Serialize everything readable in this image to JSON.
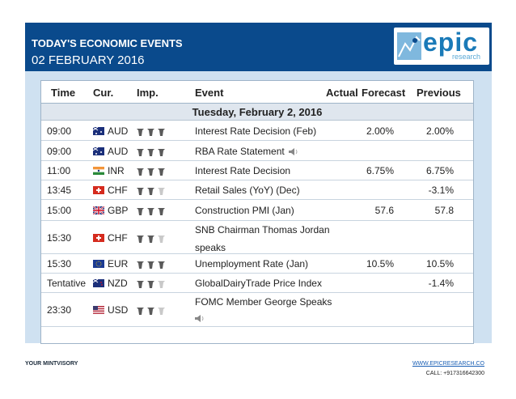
{
  "header": {
    "title": "TODAY'S ECONOMIC EVENTS",
    "date": "02 FEBRUARY 2016",
    "logo_text": "epic",
    "logo_sub": "research"
  },
  "table": {
    "columns": [
      "Time",
      "Cur.",
      "Imp.",
      "Event",
      "Actual",
      "Forecast",
      "Previous"
    ],
    "date_row": "Tuesday, February 2, 2016",
    "rows": [
      {
        "time": "09:00",
        "cur": "AUD",
        "flag": "au",
        "imp": 3,
        "event": "Interest Rate Decision (Feb)",
        "speaker": false,
        "actual": "",
        "forecast": "2.00%",
        "previous": "2.00%"
      },
      {
        "time": "09:00",
        "cur": "AUD",
        "flag": "au",
        "imp": 3,
        "event": "RBA Rate Statement",
        "speaker": true,
        "actual": "",
        "forecast": "",
        "previous": ""
      },
      {
        "time": "11:00",
        "cur": "INR",
        "flag": "in",
        "imp": 3,
        "event": "Interest Rate Decision",
        "speaker": false,
        "actual": "",
        "forecast": "6.75%",
        "previous": "6.75%"
      },
      {
        "time": "13:45",
        "cur": "CHF",
        "flag": "ch",
        "imp": 2,
        "event": "Retail Sales (YoY) (Dec)",
        "speaker": false,
        "actual": "",
        "forecast": "",
        "previous": "-3.1%"
      },
      {
        "time": "15:00",
        "cur": "GBP",
        "flag": "gb",
        "imp": 3,
        "event": "Construction PMI (Jan)",
        "speaker": false,
        "actual": "",
        "forecast": "57.6",
        "previous": "57.8"
      },
      {
        "time": "15:30",
        "cur": "CHF",
        "flag": "ch",
        "imp": 2,
        "event": "SNB Chairman Thomas Jordan",
        "event2": "speaks",
        "speaker": false,
        "actual": "",
        "forecast": "",
        "previous": ""
      },
      {
        "time": "15:30",
        "cur": "EUR",
        "flag": "eu",
        "imp": 3,
        "event": "Unemployment Rate (Jan)",
        "speaker": false,
        "actual": "",
        "forecast": "10.5%",
        "previous": "10.5%"
      },
      {
        "time": "Tentative",
        "cur": "NZD",
        "flag": "nz",
        "imp": 2,
        "event": "GlobalDairyTrade Price Index",
        "speaker": false,
        "actual": "",
        "forecast": "",
        "previous": "-1.4%"
      },
      {
        "time": "23:30",
        "cur": "USD",
        "flag": "us",
        "imp": 2,
        "event": "FOMC Member George Speaks",
        "speaker": true,
        "speaker_newline": true,
        "actual": "",
        "forecast": "",
        "previous": ""
      }
    ]
  },
  "footer": {
    "left": "YOUR MINTVISORY",
    "url": "WWW.EPICRESEARCH.CO",
    "call": "CALL: +917316642300"
  },
  "colors": {
    "header_bg": "#0a4a8c",
    "panel_bg": "#cfe1f1",
    "bull_on": "#5a5a5a",
    "bull_off": "#c9c9c9"
  }
}
